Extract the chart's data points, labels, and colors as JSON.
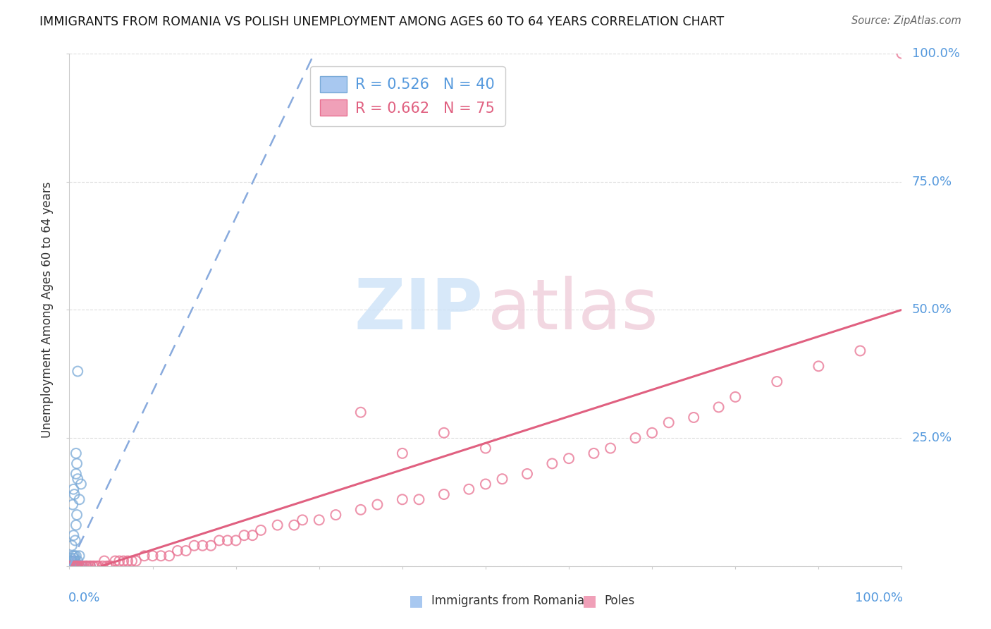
{
  "title": "IMMIGRANTS FROM ROMANIA VS POLISH UNEMPLOYMENT AMONG AGES 60 TO 64 YEARS CORRELATION CHART",
  "source": "Source: ZipAtlas.com",
  "ylabel_label": "Unemployment Among Ages 60 to 64 years",
  "romania_color": "#a8c8f0",
  "poles_color": "#f0a0b8",
  "romania_edge_color": "#7aaad8",
  "poles_edge_color": "#e87090",
  "romania_trendline_color": "#88aadd",
  "poles_trendline_color": "#e06080",
  "watermark_zip_color": "#d0e4f8",
  "watermark_atlas_color": "#f0d0dc",
  "tick_color": "#5599dd",
  "ylabel_color": "#333333",
  "grid_color": "#dddddd",
  "spine_color": "#cccccc",
  "legend_border_color": "#cccccc",
  "legend_text_color_1": "#5599dd",
  "legend_text_color_2": "#e06080",
  "romania_scatter_x": [
    0.001,
    0.001,
    0.002,
    0.002,
    0.003,
    0.003,
    0.004,
    0.004,
    0.005,
    0.005,
    0.006,
    0.006,
    0.007,
    0.007,
    0.008,
    0.008,
    0.009,
    0.01,
    0.01,
    0.012,
    0.012,
    0.015,
    0.02,
    0.025,
    0.005,
    0.008,
    0.009,
    0.01,
    0.012,
    0.014,
    0.006,
    0.007,
    0.008,
    0.009,
    0.003,
    0.004,
    0.005,
    0.006,
    0.008,
    0.01
  ],
  "romania_scatter_y": [
    0.0,
    0.01,
    0.0,
    0.015,
    0.0,
    0.01,
    0.0,
    0.02,
    0.0,
    0.01,
    0.0,
    0.015,
    0.0,
    0.01,
    0.0,
    0.02,
    0.0,
    0.0,
    0.01,
    0.0,
    0.02,
    0.0,
    0.0,
    0.0,
    0.15,
    0.18,
    0.2,
    0.38,
    0.13,
    0.16,
    0.02,
    0.05,
    0.08,
    0.1,
    0.04,
    0.12,
    0.06,
    0.14,
    0.22,
    0.17
  ],
  "poles_scatter_x": [
    0.0,
    0.003,
    0.005,
    0.007,
    0.008,
    0.009,
    0.01,
    0.012,
    0.015,
    0.017,
    0.02,
    0.022,
    0.025,
    0.028,
    0.03,
    0.033,
    0.035,
    0.04,
    0.042,
    0.045,
    0.048,
    0.05,
    0.055,
    0.06,
    0.065,
    0.07,
    0.075,
    0.08,
    0.09,
    0.1,
    0.11,
    0.12,
    0.13,
    0.14,
    0.15,
    0.16,
    0.17,
    0.18,
    0.19,
    0.2,
    0.21,
    0.22,
    0.23,
    0.25,
    0.27,
    0.28,
    0.3,
    0.32,
    0.35,
    0.37,
    0.4,
    0.42,
    0.45,
    0.48,
    0.5,
    0.52,
    0.55,
    0.58,
    0.6,
    0.63,
    0.65,
    0.68,
    0.7,
    0.72,
    0.75,
    0.78,
    0.8,
    0.85,
    0.9,
    0.95,
    0.35,
    0.4,
    0.45,
    0.5,
    1.0
  ],
  "poles_scatter_y": [
    0.0,
    0.0,
    0.0,
    0.0,
    0.0,
    0.0,
    0.0,
    0.0,
    0.0,
    0.0,
    0.0,
    0.0,
    0.0,
    0.0,
    0.0,
    0.0,
    0.0,
    0.0,
    0.01,
    0.0,
    0.0,
    0.0,
    0.01,
    0.01,
    0.01,
    0.01,
    0.01,
    0.01,
    0.02,
    0.02,
    0.02,
    0.02,
    0.03,
    0.03,
    0.04,
    0.04,
    0.04,
    0.05,
    0.05,
    0.05,
    0.06,
    0.06,
    0.07,
    0.08,
    0.08,
    0.09,
    0.09,
    0.1,
    0.11,
    0.12,
    0.13,
    0.13,
    0.14,
    0.15,
    0.16,
    0.17,
    0.18,
    0.2,
    0.21,
    0.22,
    0.23,
    0.25,
    0.26,
    0.28,
    0.29,
    0.31,
    0.33,
    0.36,
    0.39,
    0.42,
    0.3,
    0.22,
    0.26,
    0.23,
    1.0
  ],
  "romania_trend_x": [
    0.0,
    0.3
  ],
  "romania_trend_y": [
    0.0,
    1.02
  ],
  "poles_trend_x": [
    0.0,
    1.0
  ],
  "poles_trend_y": [
    -0.02,
    0.5
  ],
  "xlim": [
    0.0,
    1.0
  ],
  "ylim": [
    0.0,
    1.0
  ]
}
